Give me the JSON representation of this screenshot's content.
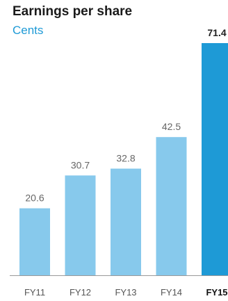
{
  "chart_data": {
    "type": "bar",
    "title": "Earnings per share",
    "subtitle": "Cents",
    "categories": [
      "FY11",
      "FY12",
      "FY13",
      "FY14",
      "FY15"
    ],
    "values": [
      20.6,
      30.7,
      32.8,
      42.5,
      71.4
    ],
    "value_labels": [
      "20.6",
      "30.7",
      "32.8",
      "42.5",
      "71.4"
    ],
    "highlight_index": 4,
    "xlabel": "",
    "ylabel": "",
    "ylim": [
      0,
      71.4
    ],
    "grid": false,
    "colors": {
      "bar": "#87c9ec",
      "highlight_bar": "#1e9ad6",
      "baseline": "#999999"
    }
  }
}
